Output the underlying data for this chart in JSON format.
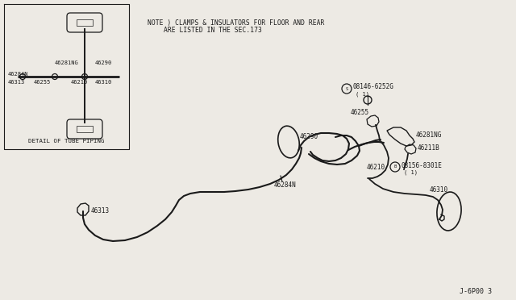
{
  "bg_color": "#edeae4",
  "line_color": "#1a1a1a",
  "text_color": "#1a1a1a",
  "title": "J-6P00 3",
  "note_line1": "NOTE ) CLAMPS & INSULATORS FOR FLOOR AND REAR",
  "note_line2": "ARE LISTED IN THE SEC.173",
  "detail_label": "DETAIL OF TUBE PIPING",
  "figw": 6.4,
  "figh": 3.72,
  "dpi": 100
}
